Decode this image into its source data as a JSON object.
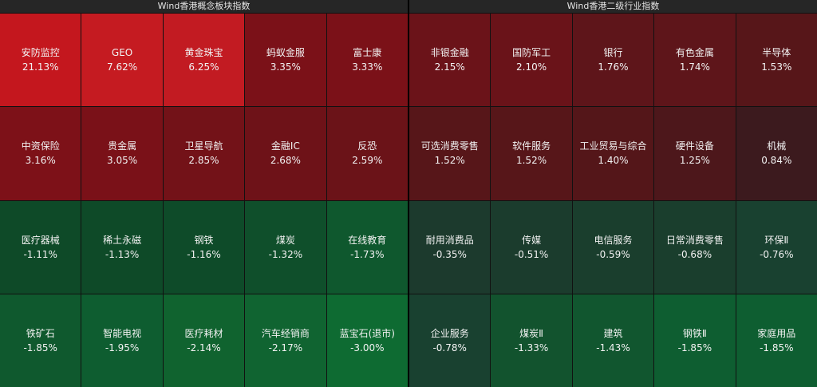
{
  "panels": [
    {
      "title": "Wind香港概念板块指数",
      "cells": [
        {
          "name": "安防监控",
          "change": "21.13%",
          "color": "#c4171e"
        },
        {
          "name": "GEO",
          "change": "7.62%",
          "color": "#c51b21"
        },
        {
          "name": "黄金珠宝",
          "change": "6.25%",
          "color": "#c21b22"
        },
        {
          "name": "蚂蚁金服",
          "change": "3.35%",
          "color": "#7b1118"
        },
        {
          "name": "富士康",
          "change": "3.33%",
          "color": "#7b1118"
        },
        {
          "name": "中资保险",
          "change": "3.16%",
          "color": "#7d1118"
        },
        {
          "name": "贵金属",
          "change": "3.05%",
          "color": "#7a1118"
        },
        {
          "name": "卫星导航",
          "change": "2.85%",
          "color": "#731218"
        },
        {
          "name": "金融IC",
          "change": "2.68%",
          "color": "#6e1218"
        },
        {
          "name": "反恐",
          "change": "2.59%",
          "color": "#6b1318"
        },
        {
          "name": "医疗器械",
          "change": "-1.11%",
          "color": "#0e4a28"
        },
        {
          "name": "稀土永磁",
          "change": "-1.13%",
          "color": "#0e4a28"
        },
        {
          "name": "钢铁",
          "change": "-1.16%",
          "color": "#0e4b29"
        },
        {
          "name": "煤炭",
          "change": "-1.32%",
          "color": "#0f4f2b"
        },
        {
          "name": "在线教育",
          "change": "-1.73%",
          "color": "#0f582e"
        },
        {
          "name": "铁矿石",
          "change": "-1.85%",
          "color": "#0f592e"
        },
        {
          "name": "智能电视",
          "change": "-1.95%",
          "color": "#0e5d30"
        },
        {
          "name": "医疗耗材",
          "change": "-2.14%",
          "color": "#10632f"
        },
        {
          "name": "汽车经销商",
          "change": "-2.17%",
          "color": "#106431"
        },
        {
          "name": "蓝宝石(退市)",
          "change": "-3.00%",
          "color": "#0e6b32"
        }
      ]
    },
    {
      "title": "Wind香港二级行业指数",
      "cells": [
        {
          "name": "非银金融",
          "change": "2.15%",
          "color": "#6b1319"
        },
        {
          "name": "国防军工",
          "change": "2.10%",
          "color": "#6a1319"
        },
        {
          "name": "银行",
          "change": "1.76%",
          "color": "#5e151a"
        },
        {
          "name": "有色金属",
          "change": "1.74%",
          "color": "#5e151a"
        },
        {
          "name": "半导体",
          "change": "1.53%",
          "color": "#571619"
        },
        {
          "name": "可选消费零售",
          "change": "1.52%",
          "color": "#571619"
        },
        {
          "name": "软件服务",
          "change": "1.52%",
          "color": "#571619"
        },
        {
          "name": "工业贸易与综合",
          "change": "1.40%",
          "color": "#541619"
        },
        {
          "name": "硬件设备",
          "change": "1.25%",
          "color": "#4d171b"
        },
        {
          "name": "机械",
          "change": "0.84%",
          "color": "#3c1a1e"
        },
        {
          "name": "耐用消费品",
          "change": "-0.35%",
          "color": "#1c3a2d"
        },
        {
          "name": "传媒",
          "change": "-0.51%",
          "color": "#1b3c2d"
        },
        {
          "name": "电信服务",
          "change": "-0.59%",
          "color": "#1a3e2d"
        },
        {
          "name": "日常消费零售",
          "change": "-0.68%",
          "color": "#1a3e2d"
        },
        {
          "name": "环保Ⅱ",
          "change": "-0.76%",
          "color": "#194130"
        },
        {
          "name": "企业服务",
          "change": "-0.78%",
          "color": "#194130"
        },
        {
          "name": "煤炭Ⅱ",
          "change": "-1.33%",
          "color": "#12532e"
        },
        {
          "name": "建筑",
          "change": "-1.43%",
          "color": "#11562f"
        },
        {
          "name": "钢铁Ⅱ",
          "change": "-1.85%",
          "color": "#0e5e31"
        },
        {
          "name": "家庭用品",
          "change": "-1.85%",
          "color": "#0e5e31"
        }
      ]
    }
  ]
}
